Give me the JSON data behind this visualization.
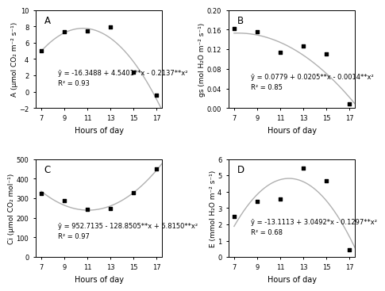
{
  "panels": [
    {
      "label": "A",
      "x_data": [
        7,
        9,
        11,
        13,
        15,
        17
      ],
      "y_data": [
        5.0,
        7.3,
        7.4,
        7.9,
        2.4,
        -0.4
      ],
      "eq_line1": "ŷ = -16.3488 + 4.5401**x - 0.2137**x²",
      "eq_line2": "R² = 0.93",
      "poly_coeffs": [
        -0.2137,
        4.5401,
        -16.3488
      ],
      "ylabel": "A (μmol CO₂ m⁻² s⁻¹)",
      "xlabel": "Hours of day",
      "ylim": [
        -2,
        10
      ],
      "yticks": [
        -2,
        0,
        2,
        4,
        6,
        8,
        10
      ],
      "eq_xa": 0.18,
      "eq_ya": 0.22
    },
    {
      "label": "B",
      "x_data": [
        7,
        9,
        11,
        13,
        15,
        17
      ],
      "y_data": [
        0.162,
        0.155,
        0.114,
        0.126,
        0.11,
        0.008
      ],
      "eq_line1": "ŷ = 0.0779 + 0.0205**x - 0.0014**x²",
      "eq_line2": "R² = 0.85",
      "poly_coeffs": [
        -0.0014,
        0.0205,
        0.0779
      ],
      "ylabel": "gs (mol H₂O m⁻² s⁻¹)",
      "xlabel": "Hours of day",
      "ylim": [
        0.0,
        0.2
      ],
      "yticks": [
        0.0,
        0.04,
        0.08,
        0.12,
        0.16,
        0.2
      ],
      "eq_xa": 0.18,
      "eq_ya": 0.18
    },
    {
      "label": "C",
      "x_data": [
        7,
        9,
        11,
        13,
        15,
        17
      ],
      "y_data": [
        325,
        288,
        242,
        246,
        330,
        450
      ],
      "eq_line1": "ŷ = 952.7135 - 128.8505**x + 5.8150**x²",
      "eq_line2": "R² = 0.97",
      "poly_coeffs": [
        5.815,
        -128.8505,
        952.7135
      ],
      "ylabel": "Ci (μmol CO₂ mol⁻¹)",
      "xlabel": "Hours of day",
      "ylim": [
        0,
        500
      ],
      "yticks": [
        0,
        100,
        200,
        300,
        400,
        500
      ],
      "eq_xa": 0.18,
      "eq_ya": 0.18
    },
    {
      "label": "D",
      "x_data": [
        7,
        9,
        11,
        13,
        15,
        17
      ],
      "y_data": [
        2.5,
        3.4,
        3.55,
        5.45,
        4.65,
        0.42
      ],
      "eq_line1": "ŷ = -13.1113 + 3.0492*x - 0.1297**x²",
      "eq_line2": "R² = 0.68",
      "poly_coeffs": [
        -0.1297,
        3.0492,
        -13.1113
      ],
      "ylabel": "E (mmol H₂O m⁻² s⁻¹)",
      "xlabel": "Hours of day",
      "ylim": [
        0,
        6
      ],
      "yticks": [
        0,
        1,
        2,
        3,
        4,
        5,
        6
      ],
      "eq_xa": 0.18,
      "eq_ya": 0.22
    }
  ],
  "xticks": [
    7,
    9,
    11,
    13,
    15,
    17
  ],
  "curve_color": "#b0b0b0",
  "marker_color": "black",
  "bg_color": "white",
  "font_size": 7.0,
  "eq_font_size": 6.0,
  "label_font_size": 8.5
}
